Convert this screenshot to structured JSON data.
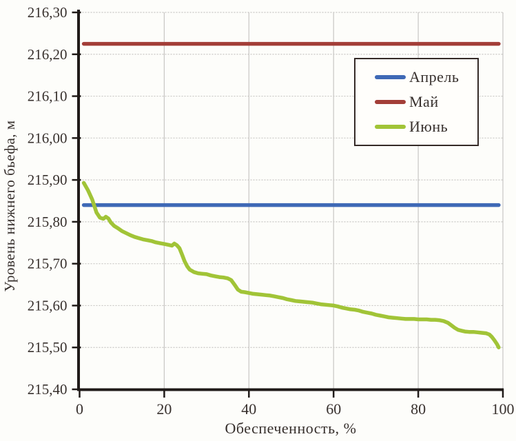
{
  "figure": {
    "background": "#fdfdfa"
  },
  "colors": {
    "axis": "#201b19",
    "grid": "#c8c6c4",
    "text": "#37302d",
    "legend_border": "#342a27",
    "legend_background": "#fffefb",
    "april_line": "#3f69b6",
    "may_line": "#a33e38",
    "june_line": "#a1c437"
  },
  "chart_data": {
    "type": "line",
    "title": "",
    "xlabel": "Обеспеченность, %",
    "ylabel": "Уровень нижнего бьефа, м",
    "xlim": [
      0,
      100
    ],
    "ylim": [
      215.4,
      216.3
    ],
    "x_ticks": [
      0,
      20,
      40,
      60,
      80,
      100
    ],
    "x_tick_labels": [
      "0",
      "20",
      "40",
      "60",
      "80",
      "100"
    ],
    "y_ticks": [
      215.4,
      215.5,
      215.6,
      215.7,
      215.8,
      215.9,
      216.0,
      216.1,
      216.2,
      216.3
    ],
    "y_tick_labels": [
      "215,40",
      "215,50",
      "215,60",
      "215,70",
      "215,80",
      "215,90",
      "216,00",
      "216,10",
      "216,20",
      "216,30"
    ],
    "grid": true,
    "legend_position": "upper-right-inside",
    "series": [
      {
        "name": "Апрель",
        "slug": "april",
        "color": "#3f69b6",
        "points": [
          [
            1,
            215.84
          ],
          [
            99,
            215.84
          ]
        ]
      },
      {
        "name": "Май",
        "slug": "may",
        "color": "#a33e38",
        "points": [
          [
            1,
            216.225
          ],
          [
            99,
            216.225
          ]
        ]
      },
      {
        "name": "Июнь",
        "slug": "june",
        "color": "#a1c437",
        "points": [
          [
            1,
            215.893
          ],
          [
            2,
            215.875
          ],
          [
            3,
            215.853
          ],
          [
            4,
            215.822
          ],
          [
            4.8,
            215.81
          ],
          [
            5.6,
            215.807
          ],
          [
            6.2,
            215.812
          ],
          [
            6.8,
            215.808
          ],
          [
            7.4,
            215.798
          ],
          [
            8.2,
            215.79
          ],
          [
            9,
            215.785
          ],
          [
            10,
            215.778
          ],
          [
            11,
            215.773
          ],
          [
            12,
            215.768
          ],
          [
            13,
            215.764
          ],
          [
            14,
            215.761
          ],
          [
            15,
            215.758
          ],
          [
            16,
            215.756
          ],
          [
            17,
            215.754
          ],
          [
            18,
            215.751
          ],
          [
            19,
            215.749
          ],
          [
            20,
            215.747
          ],
          [
            21,
            215.745
          ],
          [
            21.8,
            215.743
          ],
          [
            22.4,
            215.748
          ],
          [
            23,
            215.744
          ],
          [
            23.6,
            215.737
          ],
          [
            24.2,
            215.722
          ],
          [
            24.8,
            215.706
          ],
          [
            25.4,
            215.694
          ],
          [
            26,
            215.686
          ],
          [
            27,
            215.68
          ],
          [
            28,
            215.677
          ],
          [
            29,
            215.676
          ],
          [
            30,
            215.675
          ],
          [
            31,
            215.672
          ],
          [
            32,
            215.67
          ],
          [
            33,
            215.668
          ],
          [
            34,
            215.667
          ],
          [
            35,
            215.665
          ],
          [
            35.8,
            215.661
          ],
          [
            36.6,
            215.65
          ],
          [
            37.4,
            215.638
          ],
          [
            38.2,
            215.633
          ],
          [
            39,
            215.632
          ],
          [
            40,
            215.63
          ],
          [
            41,
            215.628
          ],
          [
            42,
            215.627
          ],
          [
            43,
            215.626
          ],
          [
            44,
            215.625
          ],
          [
            45,
            215.624
          ],
          [
            46,
            215.622
          ],
          [
            47,
            215.62
          ],
          [
            48,
            215.618
          ],
          [
            49,
            215.615
          ],
          [
            50,
            215.613
          ],
          [
            51,
            215.611
          ],
          [
            52,
            215.61
          ],
          [
            53,
            215.609
          ],
          [
            54,
            215.608
          ],
          [
            55,
            215.607
          ],
          [
            56,
            215.605
          ],
          [
            57,
            215.603
          ],
          [
            58,
            215.602
          ],
          [
            59,
            215.601
          ],
          [
            60,
            215.6
          ],
          [
            61,
            215.598
          ],
          [
            62,
            215.595
          ],
          [
            63,
            215.593
          ],
          [
            64,
            215.591
          ],
          [
            65,
            215.59
          ],
          [
            66,
            215.588
          ],
          [
            67,
            215.585
          ],
          [
            68,
            215.583
          ],
          [
            69,
            215.581
          ],
          [
            70,
            215.578
          ],
          [
            71,
            215.576
          ],
          [
            72,
            215.574
          ],
          [
            73,
            215.572
          ],
          [
            74,
            215.571
          ],
          [
            75,
            215.57
          ],
          [
            76,
            215.569
          ],
          [
            77,
            215.568
          ],
          [
            78,
            215.568
          ],
          [
            79,
            215.568
          ],
          [
            80,
            215.567
          ],
          [
            81,
            215.567
          ],
          [
            82,
            215.567
          ],
          [
            83,
            215.566
          ],
          [
            84,
            215.566
          ],
          [
            85,
            215.565
          ],
          [
            86,
            215.563
          ],
          [
            87,
            215.559
          ],
          [
            87.8,
            215.553
          ],
          [
            88.6,
            215.547
          ],
          [
            89.4,
            215.542
          ],
          [
            90.2,
            215.54
          ],
          [
            91,
            215.538
          ],
          [
            92,
            215.537
          ],
          [
            93,
            215.537
          ],
          [
            94,
            215.536
          ],
          [
            95,
            215.535
          ],
          [
            96,
            215.534
          ],
          [
            96.8,
            215.531
          ],
          [
            97.4,
            215.525
          ],
          [
            98,
            215.517
          ],
          [
            98.6,
            215.508
          ],
          [
            99,
            215.5
          ]
        ]
      }
    ]
  }
}
